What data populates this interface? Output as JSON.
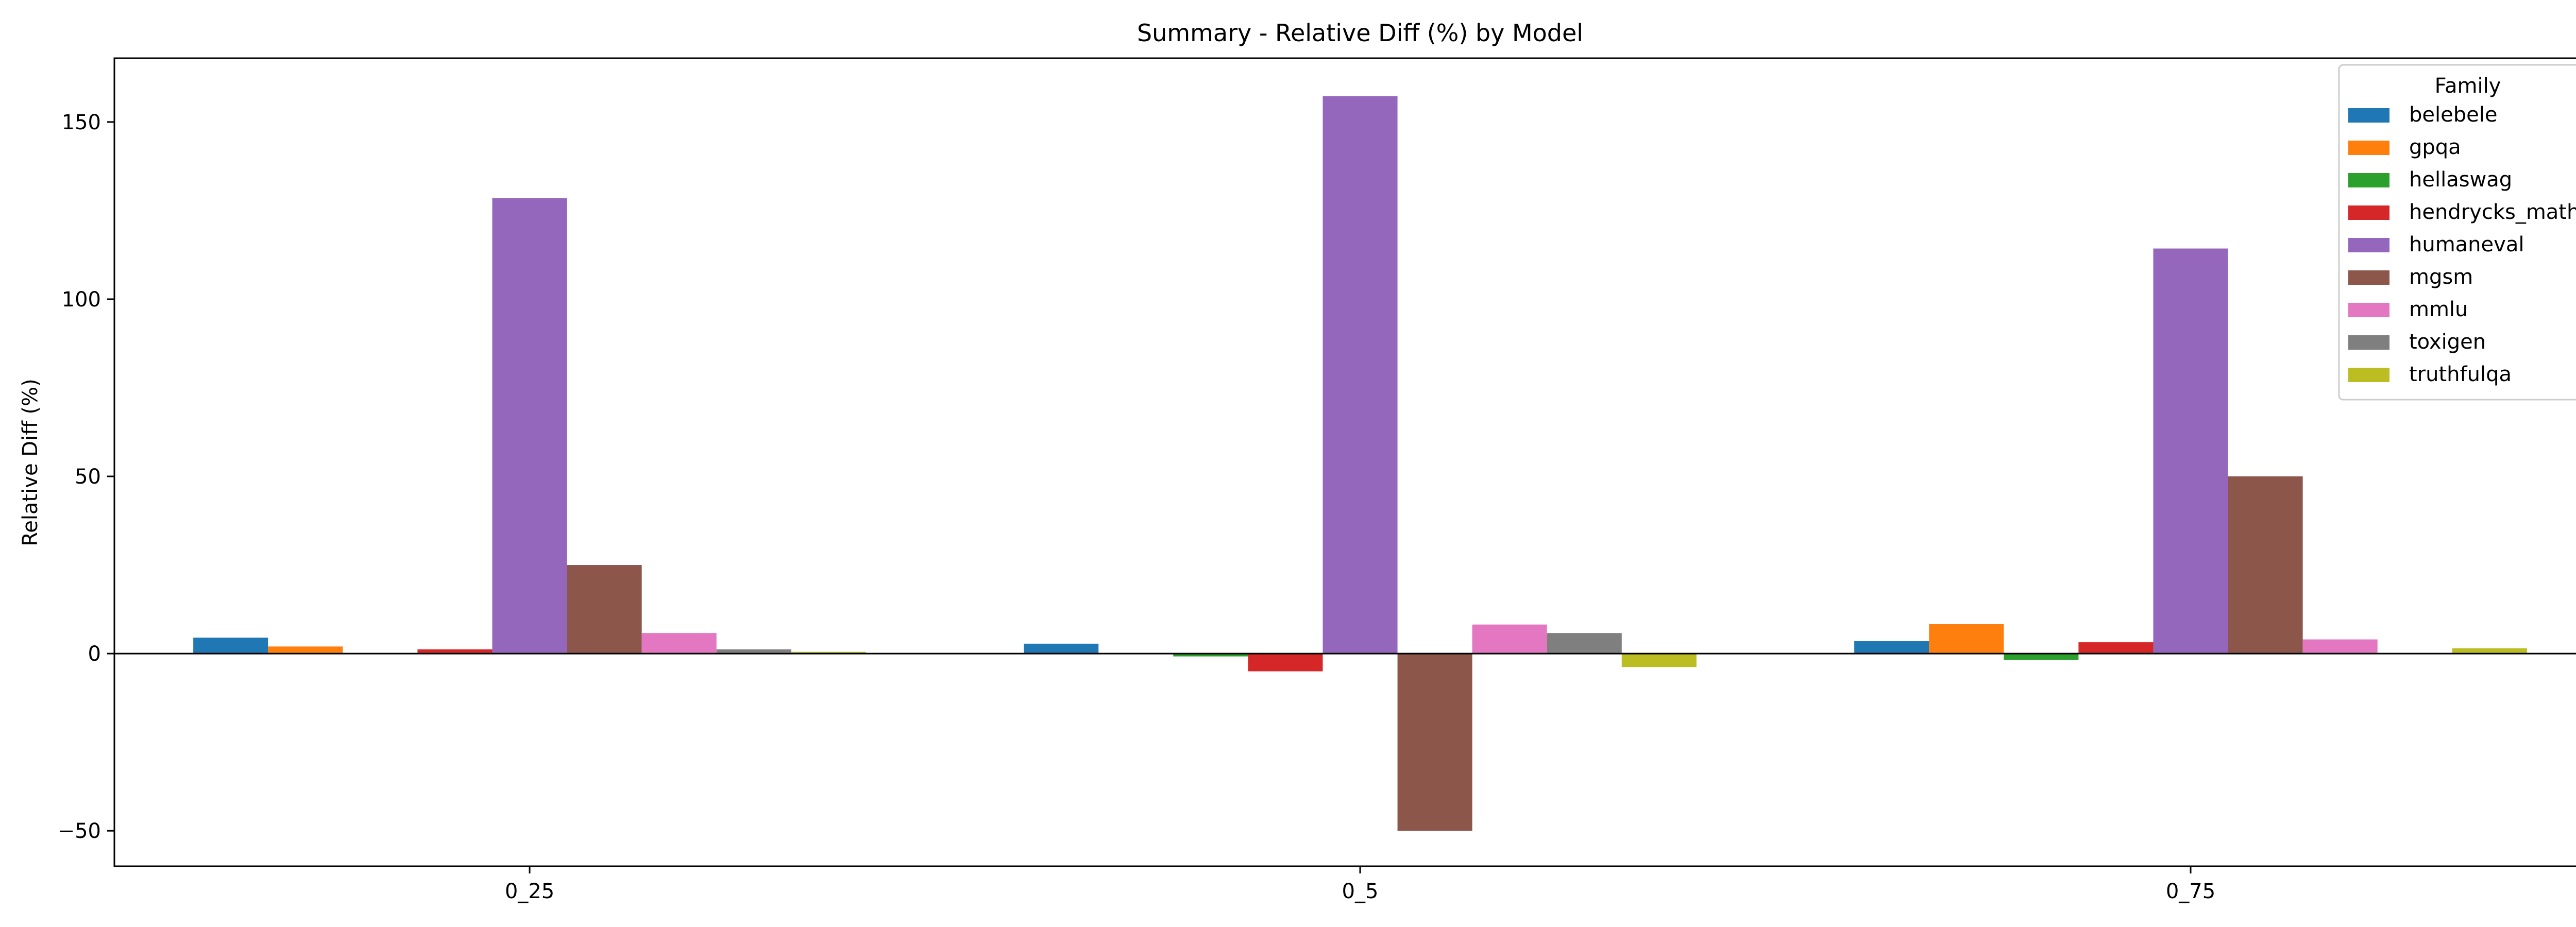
{
  "chart_data": {
    "type": "bar",
    "title": "Summary - Relative Diff (%) by Model",
    "xlabel": "",
    "ylabel": "Relative Diff (%)",
    "ylim": [
      -60,
      168
    ],
    "yticks": [
      -50,
      0,
      50,
      100,
      150
    ],
    "categories": [
      "0_25",
      "0_5",
      "0_75"
    ],
    "legend": {
      "title": "Family",
      "position": "top-right"
    },
    "series": [
      {
        "name": "belebele",
        "color": "#1f77b4",
        "values": [
          4.5,
          2.8,
          3.5
        ]
      },
      {
        "name": "gpqa",
        "color": "#ff7f0e",
        "values": [
          2.0,
          0.0,
          8.3
        ]
      },
      {
        "name": "hellaswag",
        "color": "#2ca02c",
        "values": [
          0.0,
          -0.8,
          -1.8
        ]
      },
      {
        "name": "hendrycks_math",
        "color": "#d62728",
        "values": [
          1.2,
          -5.0,
          3.2
        ]
      },
      {
        "name": "humaneval",
        "color": "#9467bd",
        "values": [
          128.5,
          157.3,
          114.3
        ]
      },
      {
        "name": "mgsm",
        "color": "#8c564b",
        "values": [
          25.0,
          -50.0,
          50.0
        ]
      },
      {
        "name": "mmlu",
        "color": "#e377c2",
        "values": [
          5.8,
          8.2,
          4.0
        ]
      },
      {
        "name": "toxigen",
        "color": "#7f7f7f",
        "values": [
          1.2,
          5.8,
          0.0
        ]
      },
      {
        "name": "truthfulqa",
        "color": "#bcbd22",
        "values": [
          0.5,
          -3.8,
          1.5
        ]
      }
    ]
  }
}
